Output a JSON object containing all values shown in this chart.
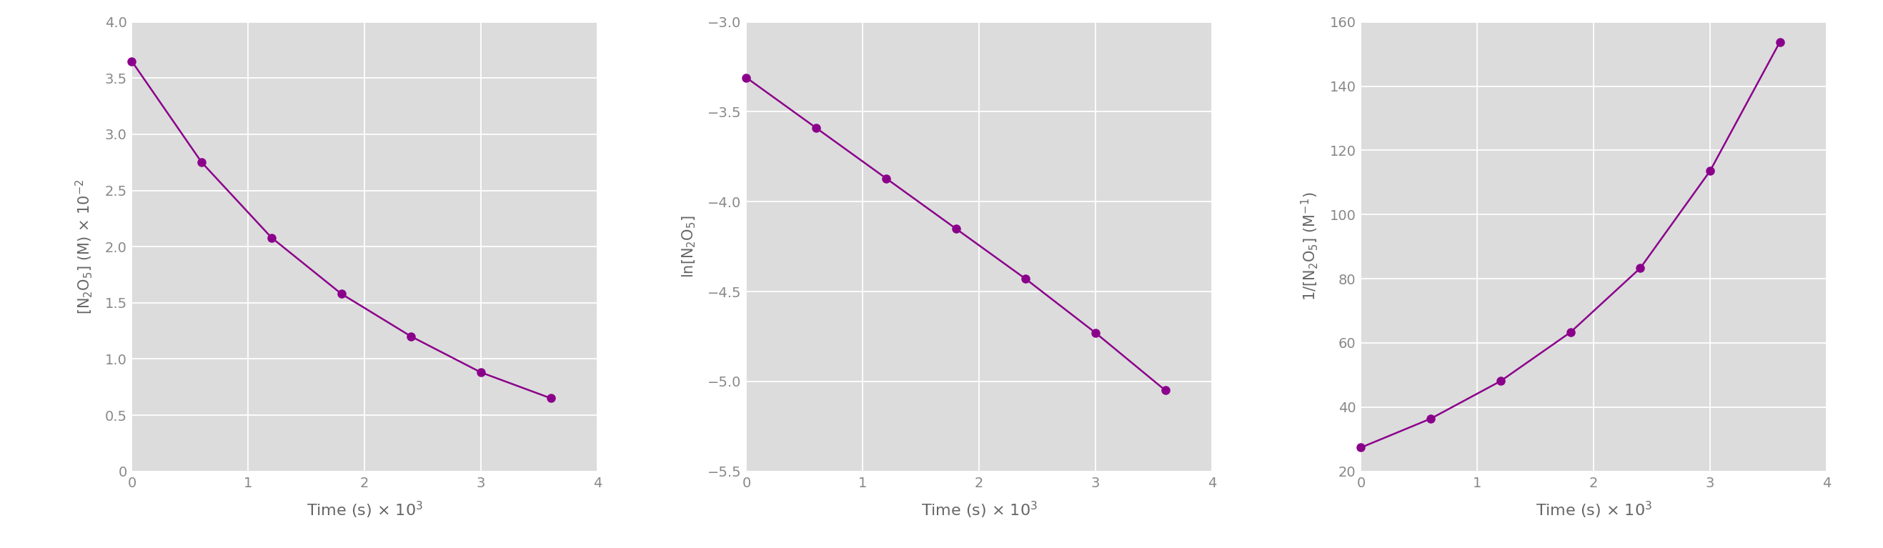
{
  "plot_color": "#8B008B",
  "bg_color": "#DCDCDC",
  "fig_bg": "#FFFFFF",
  "line_color": "#8B008B",
  "marker_color": "#8B008B",
  "marker_size": 8,
  "line_width": 1.8,
  "plot1": {
    "x": [
      0,
      600,
      1200,
      1800,
      2400,
      3000,
      3600
    ],
    "y": [
      0.0365,
      0.0275,
      0.0208,
      0.0158,
      0.012,
      0.0088,
      0.0065
    ],
    "ylabel": "$[\\mathrm{N_2O_5}]$ (M) $\\times$ 10$^{-2}$",
    "xlabel": "Time (s) $\\times$ 10$^3$",
    "ylim": [
      0,
      0.04
    ],
    "xlim": [
      0,
      4000
    ],
    "yticks": [
      0,
      0.005,
      0.01,
      0.015,
      0.02,
      0.025,
      0.03,
      0.035,
      0.04
    ],
    "ytick_labels": [
      "0",
      "0.5",
      "1.0",
      "1.5",
      "2.0",
      "2.5",
      "3.0",
      "3.5",
      "4.0"
    ],
    "xticks": [
      0,
      1000,
      2000,
      3000,
      4000
    ],
    "xtick_labels": [
      "0",
      "1",
      "2",
      "3",
      "4"
    ]
  },
  "plot2": {
    "x": [
      0,
      600,
      1200,
      1800,
      2400,
      3000,
      3600
    ],
    "y": [
      -3.31,
      -3.59,
      -3.87,
      -4.15,
      -4.43,
      -4.73,
      -5.05
    ],
    "ylabel": "$\\ln[\\mathrm{N_2O_5}]$",
    "xlabel": "Time (s) $\\times$ 10$^3$",
    "ylim": [
      -5.5,
      -3.0
    ],
    "xlim": [
      0,
      4000
    ],
    "yticks": [
      -5.5,
      -5.0,
      -4.5,
      -4.0,
      -3.5,
      -3.0
    ],
    "ytick_labels": [
      "−5.5",
      "−5.0",
      "−4.5",
      "−4.0",
      "−3.5",
      "−3.0"
    ],
    "xticks": [
      0,
      1000,
      2000,
      3000,
      4000
    ],
    "xtick_labels": [
      "0",
      "1",
      "2",
      "3",
      "4"
    ]
  },
  "plot3": {
    "x": [
      0,
      600,
      1200,
      1800,
      2400,
      3000,
      3600
    ],
    "y": [
      27.4,
      36.4,
      48.1,
      63.3,
      83.3,
      113.6,
      153.8
    ],
    "ylabel": "$1/[\\mathrm{N_2O_5}]$ (M$^{-1}$)",
    "xlabel": "Time (s) $\\times$ 10$^3$",
    "ylim": [
      20,
      160
    ],
    "xlim": [
      0,
      4000
    ],
    "yticks": [
      20,
      40,
      60,
      80,
      100,
      120,
      140,
      160
    ],
    "ytick_labels": [
      "20",
      "40",
      "60",
      "80",
      "100",
      "120",
      "140",
      "160"
    ],
    "xticks": [
      0,
      1000,
      2000,
      3000,
      4000
    ],
    "xtick_labels": [
      "0",
      "1",
      "2",
      "3",
      "4"
    ]
  }
}
